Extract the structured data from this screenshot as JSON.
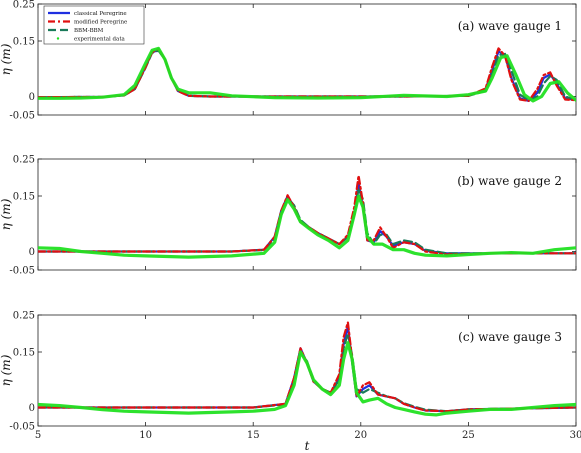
{
  "chart_data": [
    {
      "type": "line",
      "title": "(a) wave gauge 1",
      "xlabel": "",
      "ylabel": "η (m)",
      "xlim": [
        5,
        30
      ],
      "ylim": [
        -0.05,
        0.25
      ],
      "yticks": [
        "0.25",
        "0.15",
        "0",
        "-0.05"
      ],
      "xticks": [],
      "grid": false,
      "legend": {
        "position": "top-left",
        "entries": [
          "classical Peregrine",
          "modified Peregrine",
          "BBM-BBM",
          "experimental data"
        ]
      },
      "series": [
        {
          "name": "classical Peregrine",
          "color": "#1f2fe0",
          "style": "solid",
          "x": [
            5,
            8,
            9,
            9.5,
            10,
            10.3,
            10.6,
            10.9,
            11.2,
            11.5,
            12,
            13,
            15,
            18,
            22,
            25,
            25.8,
            26.1,
            26.4,
            26.7,
            27.0,
            27.4,
            27.8,
            28.2,
            28.5,
            28.8,
            29.1,
            29.5,
            30
          ],
          "y": [
            -0.002,
            -0.001,
            0.003,
            0.02,
            0.08,
            0.12,
            0.125,
            0.1,
            0.05,
            0.015,
            0.002,
            0.0,
            0.0,
            0.0,
            0.0,
            0.002,
            0.02,
            0.07,
            0.122,
            0.11,
            0.05,
            -0.005,
            -0.012,
            0.01,
            0.05,
            0.06,
            0.035,
            -0.005,
            -0.01
          ]
        },
        {
          "name": "modified Peregrine",
          "color": "#e01010",
          "style": "dashdot",
          "x": [
            5,
            8,
            9,
            9.5,
            10,
            10.3,
            10.6,
            10.9,
            11.2,
            11.5,
            12,
            13,
            15,
            18,
            22,
            25,
            25.8,
            26.1,
            26.4,
            26.7,
            27.0,
            27.4,
            27.8,
            28.2,
            28.5,
            28.8,
            29.1,
            29.5,
            30
          ],
          "y": [
            -0.002,
            -0.001,
            0.003,
            0.02,
            0.08,
            0.12,
            0.128,
            0.1,
            0.05,
            0.015,
            0.002,
            0.0,
            0.0,
            0.0,
            0.0,
            0.002,
            0.022,
            0.08,
            0.13,
            0.11,
            0.045,
            -0.008,
            -0.012,
            0.02,
            0.058,
            0.065,
            0.03,
            -0.008,
            -0.01
          ]
        },
        {
          "name": "BBM-BBM",
          "color": "#1a7a5a",
          "style": "dashed",
          "x": [
            5,
            8,
            9,
            9.5,
            10,
            10.3,
            10.6,
            10.9,
            11.2,
            11.5,
            12,
            13,
            15,
            18,
            22,
            25,
            25.8,
            26.1,
            26.4,
            26.7,
            27.0,
            27.4,
            27.8,
            28.2,
            28.5,
            28.8,
            29.1,
            29.5,
            30
          ],
          "y": [
            -0.002,
            -0.001,
            0.003,
            0.02,
            0.078,
            0.118,
            0.124,
            0.1,
            0.052,
            0.016,
            0.002,
            0.0,
            0.0,
            0.0,
            0.0,
            0.002,
            0.015,
            0.06,
            0.112,
            0.115,
            0.07,
            0.005,
            -0.01,
            0.0,
            0.035,
            0.055,
            0.045,
            0.0,
            -0.01
          ]
        },
        {
          "name": "experimental data",
          "color": "#22e022",
          "style": "solid-thick",
          "x": [
            5,
            6,
            7,
            8,
            9,
            9.5,
            10,
            10.3,
            10.6,
            10.9,
            11.2,
            11.5,
            12,
            13,
            14,
            16,
            18,
            20,
            22,
            24,
            25,
            25.8,
            26.1,
            26.5,
            26.8,
            27.2,
            27.6,
            28.0,
            28.4,
            28.8,
            29.2,
            29.6,
            30
          ],
          "y": [
            -0.005,
            -0.005,
            -0.004,
            -0.002,
            0.005,
            0.03,
            0.09,
            0.125,
            0.13,
            0.1,
            0.05,
            0.02,
            0.01,
            0.01,
            0.002,
            -0.003,
            -0.004,
            -0.003,
            0.003,
            0.0,
            0.005,
            0.015,
            0.05,
            0.105,
            0.11,
            0.06,
            0.005,
            -0.012,
            0.0,
            0.035,
            0.04,
            0.01,
            -0.01
          ]
        }
      ]
    },
    {
      "type": "line",
      "title": "(b) wave gauge 2",
      "xlabel": "",
      "ylabel": "η (m)",
      "xlim": [
        5,
        30
      ],
      "ylim": [
        -0.05,
        0.25
      ],
      "yticks": [
        "0.25",
        "0.15",
        "0",
        "-0.05"
      ],
      "xticks": [],
      "grid": false,
      "series": [
        {
          "name": "classical Peregrine",
          "color": "#1f2fe0",
          "style": "solid",
          "x": [
            5,
            10,
            14,
            15.5,
            16,
            16.3,
            16.6,
            16.9,
            17.2,
            17.6,
            18,
            18.5,
            19,
            19.4,
            19.7,
            19.9,
            20.1,
            20.3,
            20.6,
            20.9,
            21.2,
            21.5,
            22,
            22.5,
            23,
            24,
            26,
            30
          ],
          "y": [
            0,
            0,
            0,
            0.005,
            0.04,
            0.11,
            0.15,
            0.12,
            0.08,
            0.065,
            0.05,
            0.035,
            0.02,
            0.04,
            0.1,
            0.185,
            0.12,
            0.03,
            0.025,
            0.055,
            0.04,
            0.015,
            0.025,
            0.02,
            0.002,
            -0.005,
            -0.005,
            -0.005
          ]
        },
        {
          "name": "modified Peregrine",
          "color": "#e01010",
          "style": "dashdot",
          "x": [
            5,
            10,
            14,
            15.5,
            16,
            16.3,
            16.6,
            16.9,
            17.2,
            17.6,
            18,
            18.5,
            19,
            19.4,
            19.7,
            19.9,
            20.1,
            20.3,
            20.6,
            20.9,
            21.2,
            21.5,
            22,
            22.5,
            23,
            24,
            26,
            30
          ],
          "y": [
            0,
            0,
            0,
            0.005,
            0.04,
            0.11,
            0.152,
            0.12,
            0.08,
            0.065,
            0.05,
            0.035,
            0.02,
            0.045,
            0.12,
            0.205,
            0.13,
            0.03,
            0.03,
            0.065,
            0.04,
            0.01,
            0.025,
            0.02,
            0.0,
            -0.008,
            -0.005,
            -0.005
          ]
        },
        {
          "name": "BBM-BBM",
          "color": "#1a7a5a",
          "style": "dashed",
          "x": [
            5,
            10,
            14,
            15.5,
            16,
            16.3,
            16.6,
            16.9,
            17.2,
            17.6,
            18,
            18.5,
            19,
            19.4,
            19.7,
            19.9,
            20.1,
            20.3,
            20.6,
            20.9,
            21.2,
            21.5,
            22,
            22.5,
            23,
            24,
            26,
            30
          ],
          "y": [
            0,
            0,
            0,
            0.004,
            0.035,
            0.1,
            0.145,
            0.125,
            0.085,
            0.065,
            0.05,
            0.035,
            0.02,
            0.04,
            0.1,
            0.17,
            0.14,
            0.05,
            0.02,
            0.045,
            0.045,
            0.02,
            0.03,
            0.025,
            0.005,
            -0.005,
            -0.005,
            -0.005
          ]
        },
        {
          "name": "experimental data",
          "color": "#22e022",
          "style": "solid-thick",
          "x": [
            5,
            6,
            7,
            8,
            9,
            10,
            12,
            14,
            15.5,
            16,
            16.3,
            16.6,
            16.9,
            17.2,
            17.6,
            18,
            18.5,
            19,
            19.4,
            19.7,
            19.9,
            20.1,
            20.3,
            20.6,
            21,
            21.5,
            22,
            22.5,
            23,
            24,
            25,
            26,
            27,
            28,
            29,
            30
          ],
          "y": [
            0.01,
            0.008,
            0.0,
            -0.005,
            -0.01,
            -0.012,
            -0.015,
            -0.012,
            -0.005,
            0.025,
            0.1,
            0.14,
            0.115,
            0.08,
            0.062,
            0.045,
            0.03,
            0.01,
            0.03,
            0.1,
            0.15,
            0.12,
            0.04,
            0.02,
            0.02,
            0.005,
            0.005,
            -0.005,
            -0.01,
            -0.012,
            -0.008,
            -0.005,
            -0.003,
            -0.005,
            0.005,
            0.01
          ]
        }
      ]
    },
    {
      "type": "line",
      "title": "(c) wave gauge 3",
      "xlabel": "t",
      "ylabel": "η (m)",
      "xlim": [
        5,
        30
      ],
      "ylim": [
        -0.05,
        0.25
      ],
      "yticks": [
        "0.25",
        "0.15",
        "0",
        "-0.05"
      ],
      "xticks": [
        "5",
        "10",
        "15",
        "20",
        "25",
        "30"
      ],
      "grid": false,
      "series": [
        {
          "name": "classical Peregrine",
          "color": "#1f2fe0",
          "style": "solid",
          "x": [
            5,
            10,
            15,
            16.5,
            16.9,
            17.2,
            17.5,
            17.8,
            18.2,
            18.6,
            19.0,
            19.2,
            19.4,
            19.6,
            19.8,
            20.1,
            20.4,
            20.8,
            21.2,
            21.6,
            22.0,
            22.5,
            23,
            24,
            25,
            27,
            30
          ],
          "y": [
            0,
            0,
            0,
            0.01,
            0.08,
            0.16,
            0.12,
            0.07,
            0.05,
            0.04,
            0.08,
            0.17,
            0.22,
            0.12,
            0.03,
            0.05,
            0.06,
            0.035,
            0.03,
            0.025,
            0.01,
            0.0,
            -0.008,
            -0.01,
            -0.005,
            -0.003,
            0.0
          ]
        },
        {
          "name": "modified Peregrine",
          "color": "#e01010",
          "style": "dashdot",
          "x": [
            5,
            10,
            15,
            16.5,
            16.9,
            17.2,
            17.5,
            17.8,
            18.2,
            18.6,
            19.0,
            19.2,
            19.4,
            19.6,
            19.8,
            20.1,
            20.4,
            20.8,
            21.2,
            21.6,
            22.0,
            22.5,
            23,
            24,
            25,
            27,
            30
          ],
          "y": [
            0,
            0,
            0,
            0.01,
            0.08,
            0.16,
            0.12,
            0.07,
            0.05,
            0.04,
            0.09,
            0.19,
            0.23,
            0.13,
            0.03,
            0.06,
            0.068,
            0.035,
            0.03,
            0.025,
            0.01,
            0.0,
            -0.008,
            -0.01,
            -0.005,
            -0.003,
            0.0
          ]
        },
        {
          "name": "BBM-BBM",
          "color": "#1a7a5a",
          "style": "dashed",
          "x": [
            5,
            10,
            15,
            16.5,
            16.9,
            17.2,
            17.5,
            17.8,
            18.2,
            18.6,
            19.0,
            19.2,
            19.4,
            19.6,
            19.8,
            20.1,
            20.4,
            20.8,
            21.2,
            21.6,
            22.0,
            22.5,
            23,
            24,
            25,
            27,
            30
          ],
          "y": [
            0,
            0,
            0,
            0.008,
            0.07,
            0.15,
            0.125,
            0.075,
            0.05,
            0.04,
            0.075,
            0.16,
            0.2,
            0.14,
            0.05,
            0.04,
            0.05,
            0.04,
            0.03,
            0.025,
            0.012,
            0.002,
            -0.006,
            -0.01,
            -0.005,
            -0.003,
            0.0
          ]
        },
        {
          "name": "experimental data",
          "color": "#22e022",
          "style": "solid-thick",
          "x": [
            5,
            6,
            7,
            8,
            9,
            10,
            12,
            14,
            15,
            16,
            16.5,
            16.9,
            17.2,
            17.5,
            17.8,
            18.2,
            18.6,
            19.0,
            19.2,
            19.4,
            19.6,
            19.8,
            20.1,
            20.4,
            20.8,
            21.2,
            21.6,
            22.0,
            22.5,
            23,
            23.5,
            24,
            25,
            26,
            27,
            28,
            29,
            30
          ],
          "y": [
            0.008,
            0.005,
            0.0,
            -0.006,
            -0.01,
            -0.012,
            -0.015,
            -0.012,
            -0.01,
            -0.005,
            0.005,
            0.06,
            0.15,
            0.12,
            0.075,
            0.05,
            0.035,
            0.06,
            0.13,
            0.175,
            0.13,
            0.04,
            0.015,
            0.02,
            0.025,
            0.01,
            0.0,
            -0.005,
            -0.012,
            -0.018,
            -0.02,
            -0.015,
            -0.01,
            -0.005,
            -0.005,
            0.0,
            0.005,
            0.008
          ]
        }
      ]
    }
  ]
}
